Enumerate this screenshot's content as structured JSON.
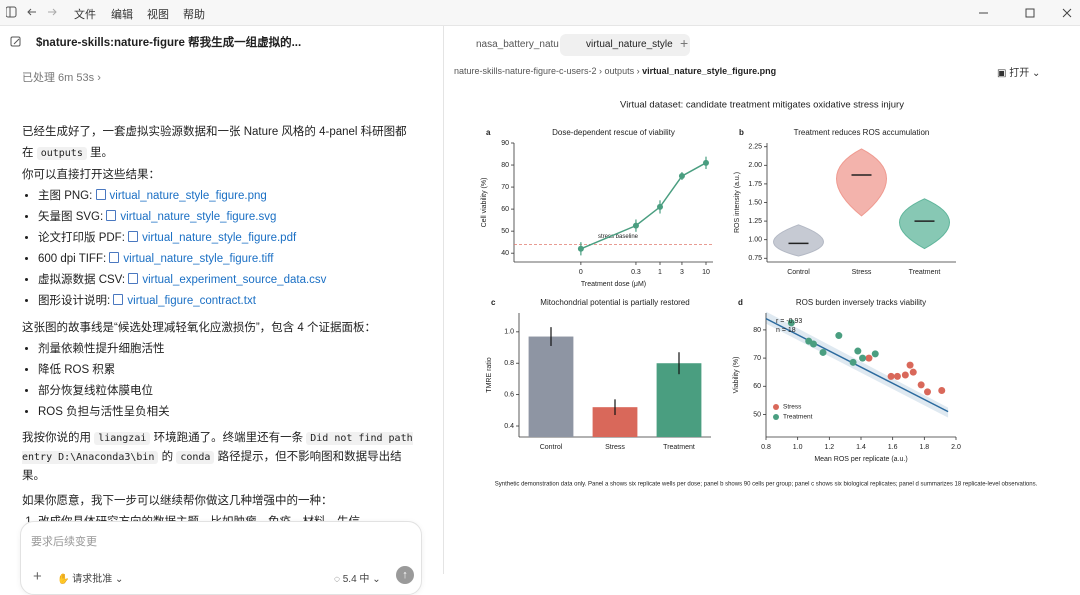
{
  "menu": [
    "文件",
    "编辑",
    "视图",
    "帮助"
  ],
  "chat": {
    "title": "$nature-skills:nature-figure 帮我生成一组虚拟的...",
    "more": "···",
    "status": "已处理 6m 53s",
    "intro": [
      {
        "text": "已经生成好了，一套虚拟实验源数据和一张 Nature 风格的 4-panel 科研图都在 "
      },
      {
        "code": "outputs"
      },
      {
        "text": " 里。"
      }
    ],
    "open_hint": "你可以直接打开这些结果：",
    "files": [
      {
        "label": "主图 PNG:",
        "file": "virtual_nature_style_figure.png"
      },
      {
        "label": "矢量图 SVG:",
        "file": "virtual_nature_style_figure.svg"
      },
      {
        "label": "论文打印版 PDF:",
        "file": "virtual_nature_style_figure.pdf"
      },
      {
        "label": "600 dpi TIFF:",
        "file": "virtual_nature_style_figure.tiff"
      },
      {
        "label": "虚拟源数据 CSV:",
        "file": "virtual_experiment_source_data.csv"
      },
      {
        "label": "图形设计说明:",
        "file": "virtual_figure_contract.txt"
      }
    ],
    "story": "这张图的故事线是“候选处理减轻氧化应激损伤”，包含 4 个证据面板：",
    "panel_points": [
      "剂量依赖性提升细胞活性",
      "降低 ROS 积累",
      "部分恢复线粒体膜电位",
      "ROS 负担与活性呈负相关"
    ],
    "env": [
      {
        "text": "我按你说的用 "
      },
      {
        "code": "liangzai"
      },
      {
        "text": " 环境跑通了。终端里还有一条 "
      },
      {
        "code": "Did not find path entry D:\\Anaconda3\\bin"
      },
      {
        "text": " 的 "
      },
      {
        "code": "conda"
      },
      {
        "text": " 路径提示，但不影响图和数据导出结果。"
      }
    ],
    "next": "如果你愿意，我下一步可以继续帮你做这几种增强中的一种：",
    "next_list": [
      "改成你具体研究方向的数据主题，比如肿瘤、免疫、材料、生信。"
    ],
    "input_placeholder": "要求后续变更",
    "approval": "请求批准",
    "model": "5.4 中"
  },
  "viewer": {
    "tabs": [
      "nasa_battery_natu",
      "virtual_nature_style"
    ],
    "breadcrumb": [
      "nature-skills-nature-figure-c-users-2",
      "outputs",
      "virtual_nature_style_figure.png"
    ],
    "open": "打开"
  },
  "figure": {
    "title": "Virtual dataset: candidate treatment mitigates oxidative stress injury",
    "caption": "Synthetic demonstration data only. Panel a shows six replicate wells per dose; panel b shows 90 cells per group; panel c shows six biological replicates; panel d summarizes 18 replicate-level observations.",
    "panels": [
      {
        "type": "line",
        "letter": "a",
        "title": "Dose-dependent rescue of viability",
        "xlabel": "Treatment dose (μM)",
        "ylabel": "Cell viability (%)",
        "xscale": "symlog",
        "x": [
          0,
          0.3,
          1,
          3,
          10
        ],
        "values": [
          42,
          52.5,
          61,
          75,
          81
        ],
        "errors": [
          3,
          2.8,
          3,
          1.8,
          2.8
        ],
        "color": "#4a9e80",
        "ylim": [
          36,
          90
        ],
        "yticks": [
          40,
          50,
          60,
          70,
          80,
          90
        ],
        "xticks": [
          0,
          0.3,
          1,
          3,
          10
        ],
        "baseline": 44,
        "baseline_label": "stress baseline",
        "baseline_color": "#e07a6e"
      },
      {
        "type": "violin",
        "letter": "b",
        "title": "Treatment reduces ROS accumulation",
        "ylabel": "ROS intensity (a.u.)",
        "categories": [
          "Control",
          "Stress",
          "Treatment"
        ],
        "values": [
          0.95,
          1.87,
          1.25
        ],
        "mins": [
          0.78,
          1.32,
          0.88
        ],
        "maxs": [
          1.2,
          2.22,
          1.55
        ],
        "colors": [
          "#b3b8c4",
          "#ef9a90",
          "#5fb59b"
        ],
        "ylim": [
          0.7,
          2.3
        ],
        "yticks": [
          0.75,
          {
            "value": 1,
            "label": "1.00"
          },
          1.25,
          {
            "value": 1.5,
            "label": "1.50"
          },
          1.75,
          {
            "value": 2,
            "label": "2.00"
          },
          2.25
        ]
      },
      {
        "type": "bar",
        "letter": "c",
        "title": "Mitochondrial potential is partially restored",
        "ylabel": "TMRE ratio",
        "categories": [
          "Control",
          "Stress",
          "Treatment"
        ],
        "values": [
          0.97,
          0.52,
          0.8
        ],
        "errors": [
          0.06,
          0.05,
          0.07
        ],
        "colors": [
          "#8e95a3",
          "#d9685a",
          "#4a9e80"
        ],
        "ylim": [
          0.33,
          1.12
        ],
        "yticks": [
          0.4,
          0.6,
          0.8,
          {
            "value": 1,
            "label": "1.0"
          }
        ]
      },
      {
        "type": "scatter",
        "letter": "d",
        "title": "ROS burden inversely tracks viability",
        "xlabel": "Mean ROS per replicate (a.u.)",
        "ylabel": "Viability (%)",
        "annotation": [
          "r = -0.93",
          "n = 18"
        ],
        "xlim": [
          0.8,
          2.0
        ],
        "ylim": [
          42,
          86
        ],
        "xticks": [
          0.8,
          {
            "value": 1,
            "label": "1.0"
          },
          1.2,
          1.4,
          1.6,
          1.8,
          {
            "value": 2,
            "label": "2.0"
          }
        ],
        "yticks": [
          50,
          60,
          70,
          80
        ],
        "series": [
          {
            "name": "Stress",
            "color": "#d9685a",
            "x": [
              1.45,
              1.59,
              1.63,
              1.68,
              1.71,
              1.73,
              1.78,
              1.82,
              1.91
            ],
            "values": [
              70,
              63.5,
              63.5,
              64,
              67.5,
              65,
              60.5,
              58,
              58.5
            ]
          },
          {
            "name": "Treatment",
            "color": "#4a9e80",
            "x": [
              0.96,
              1.07,
              1.1,
              1.16,
              1.26,
              1.35,
              1.38,
              1.41,
              1.49
            ],
            "values": [
              82.5,
              76,
              75,
              72,
              78,
              68.5,
              72.5,
              70,
              71.5
            ]
          }
        ],
        "fit_x": [
          0.8,
          1.95
        ],
        "fit_y": [
          84,
          51
        ],
        "fit_color": "#2b6a9e"
      }
    ]
  }
}
